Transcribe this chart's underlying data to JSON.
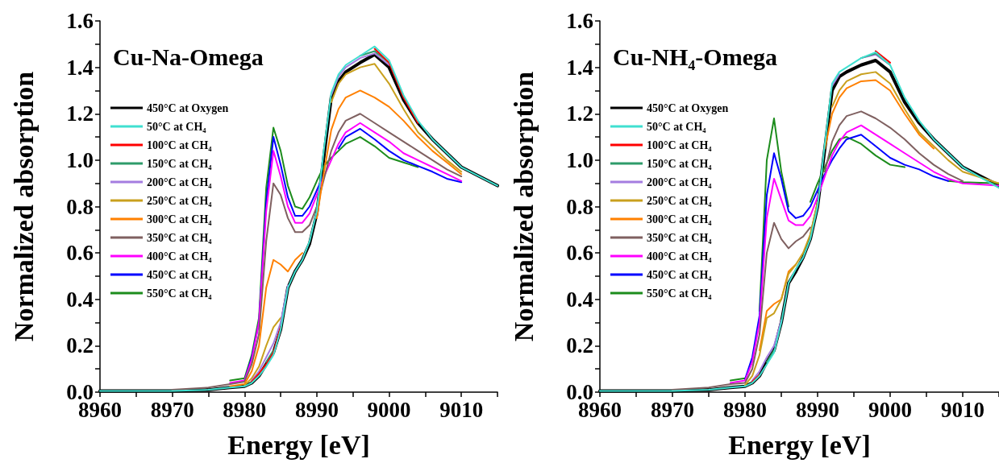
{
  "chart_data": [
    {
      "type": "line",
      "title": "Cu-Na-Omega",
      "xlabel": "Energy [eV]",
      "ylabel": "Normalized absorption",
      "legend": "top left",
      "grid": false,
      "marker": "none",
      "line_style": "solid",
      "xlim": [
        8960,
        9015
      ],
      "ylim": [
        0,
        1.6
      ],
      "xticks": [
        8960,
        {
          "value": 8965,
          "label": null
        },
        8970,
        {
          "value": 8975,
          "label": null
        },
        8980,
        {
          "value": 8985,
          "label": null
        },
        8990,
        {
          "value": 8995,
          "label": null
        },
        9000,
        {
          "value": 9005,
          "label": null
        },
        9010,
        {
          "value": 9015,
          "label": null
        }
      ],
      "yticks": [
        {
          "value": 0,
          "label": "0.0"
        },
        {
          "value": 0.1,
          "label": null
        },
        0.2,
        {
          "value": 0.3,
          "label": null
        },
        0.4,
        {
          "value": 0.5,
          "label": null
        },
        0.6,
        {
          "value": 0.7,
          "label": null
        },
        0.8,
        {
          "value": 0.9,
          "label": null
        },
        {
          "value": 1,
          "label": "1.0"
        },
        {
          "value": 1.1,
          "label": null
        },
        1.2,
        {
          "value": 1.3,
          "label": null
        },
        1.4,
        {
          "value": 1.5,
          "label": null
        },
        1.6
      ],
      "x": [
        8960,
        8970,
        8975,
        8978,
        8980,
        8981,
        8982,
        8983,
        8984,
        8985,
        8986,
        8987,
        8988,
        8989,
        8990,
        8991,
        8992,
        8993,
        8994,
        8996,
        8998,
        9000,
        9002,
        9004,
        9006,
        9008,
        9010,
        9015
      ],
      "series": [
        {
          "name": "450°C at Oxygen",
          "color": "#000000",
          "values": [
            0.005,
            0.005,
            0.01,
            0.02,
            0.025,
            0.04,
            0.07,
            0.12,
            0.17,
            0.27,
            0.45,
            0.52,
            0.57,
            0.64,
            0.77,
            1.02,
            1.27,
            1.34,
            1.38,
            1.42,
            1.455,
            1.4,
            1.26,
            1.16,
            1.09,
            1.03,
            0.97,
            0.89
          ]
        },
        {
          "name": "50°C at CH₄",
          "color": "#40e0d0",
          "values": [
            0.005,
            0.005,
            0.01,
            0.02,
            0.025,
            0.04,
            0.07,
            0.11,
            0.16,
            0.27,
            0.45,
            0.52,
            0.57,
            0.65,
            0.78,
            1.05,
            1.29,
            1.37,
            1.41,
            1.45,
            1.49,
            1.43,
            1.28,
            1.17,
            1.09,
            1.03,
            0.97,
            0.89
          ]
        },
        {
          "name": "100°C at CH₄",
          "color": "#ff0000",
          "values": [
            null,
            null,
            null,
            null,
            null,
            0.045,
            0.08,
            0.12,
            0.17,
            0.28,
            null,
            null,
            null,
            null,
            null,
            null,
            null,
            null,
            null,
            null,
            1.48,
            1.42,
            1.27,
            1.16,
            null,
            null,
            null,
            null
          ]
        },
        {
          "name": "150°C at CH₄",
          "color": "#2e9b6a",
          "values": [
            null,
            null,
            null,
            null,
            null,
            null,
            null,
            0.13,
            0.18,
            null,
            null,
            null,
            null,
            null,
            null,
            null,
            null,
            null,
            null,
            1.45,
            1.47,
            1.42,
            null,
            null,
            null,
            null,
            null,
            null
          ]
        },
        {
          "name": "200°C at CH₄",
          "color": "#a47de0",
          "values": [
            null,
            null,
            null,
            null,
            null,
            0.05,
            0.09,
            0.15,
            0.21,
            0.3,
            0.46,
            null,
            null,
            null,
            null,
            null,
            1.28,
            1.36,
            1.4,
            1.44,
            1.46,
            1.41,
            null,
            null,
            null,
            null,
            null,
            null
          ]
        },
        {
          "name": "250°C at CH₄",
          "color": "#c9a01e",
          "values": [
            null,
            null,
            null,
            null,
            0.03,
            0.06,
            0.11,
            0.2,
            0.28,
            0.32,
            null,
            null,
            null,
            null,
            null,
            null,
            1.25,
            1.33,
            1.37,
            1.4,
            1.415,
            1.33,
            1.22,
            1.12,
            1.06,
            1.0,
            0.95,
            null
          ]
        },
        {
          "name": "300°C at CH₄",
          "color": "#ff8000",
          "values": [
            null,
            null,
            null,
            0.025,
            0.035,
            0.09,
            0.2,
            0.45,
            0.57,
            0.55,
            0.52,
            0.57,
            0.6,
            null,
            0.75,
            0.95,
            1.13,
            1.22,
            1.27,
            1.3,
            1.27,
            1.23,
            1.17,
            1.1,
            1.04,
            0.99,
            0.94,
            null
          ]
        },
        {
          "name": "350°C at CH₄",
          "color": "#7f6060",
          "values": [
            null,
            0.01,
            0.02,
            0.035,
            0.045,
            0.12,
            0.25,
            0.65,
            0.9,
            0.85,
            0.75,
            0.69,
            0.69,
            0.72,
            0.8,
            0.92,
            1.04,
            1.12,
            1.17,
            1.2,
            1.16,
            1.12,
            1.08,
            1.04,
            1.0,
            0.96,
            0.93,
            null
          ]
        },
        {
          "name": "400°C at CH₄",
          "color": "#ff00ff",
          "values": [
            null,
            null,
            null,
            0.04,
            0.05,
            0.14,
            0.3,
            0.78,
            1.04,
            0.93,
            0.8,
            0.73,
            0.73,
            0.77,
            0.85,
            0.93,
            1.0,
            1.07,
            1.12,
            1.16,
            1.12,
            1.08,
            1.03,
            1.0,
            0.97,
            0.94,
            0.91,
            null
          ]
        },
        {
          "name": "450°C at CH₄",
          "color": "#0000ff",
          "values": [
            null,
            null,
            null,
            null,
            0.05,
            0.15,
            0.3,
            0.82,
            1.1,
            0.98,
            0.84,
            0.76,
            0.76,
            0.8,
            0.87,
            0.94,
            null,
            1.05,
            1.1,
            1.135,
            1.09,
            1.04,
            1.0,
            0.975,
            0.95,
            0.92,
            0.905,
            null
          ]
        },
        {
          "name": "550°C at CH₄",
          "color": "#1c8c1c",
          "values": [
            null,
            null,
            null,
            0.05,
            0.06,
            0.16,
            0.32,
            0.88,
            1.14,
            1.04,
            0.89,
            0.8,
            0.79,
            0.84,
            0.91,
            0.975,
            1.01,
            1.04,
            1.07,
            1.1,
            1.06,
            1.01,
            0.99,
            0.97,
            null,
            null,
            null,
            null
          ]
        }
      ]
    },
    {
      "type": "line",
      "title": "Cu-NH₄-Omega",
      "xlabel": "Energy [eV]",
      "ylabel": "Normalized absorption",
      "legend": "top left",
      "grid": false,
      "marker": "none",
      "line_style": "solid",
      "xlim": [
        8960,
        9015
      ],
      "ylim": [
        0,
        1.6
      ],
      "xticks": [
        8960,
        {
          "value": 8965,
          "label": null
        },
        8970,
        {
          "value": 8975,
          "label": null
        },
        8980,
        {
          "value": 8985,
          "label": null
        },
        8990,
        {
          "value": 8995,
          "label": null
        },
        9000,
        {
          "value": 9005,
          "label": null
        },
        9010,
        {
          "value": 9015,
          "label": null
        }
      ],
      "yticks": [
        {
          "value": 0,
          "label": "0.0"
        },
        {
          "value": 0.1,
          "label": null
        },
        0.2,
        {
          "value": 0.3,
          "label": null
        },
        0.4,
        {
          "value": 0.5,
          "label": null
        },
        0.6,
        {
          "value": 0.7,
          "label": null
        },
        0.8,
        {
          "value": 0.9,
          "label": null
        },
        {
          "value": 1,
          "label": "1.0"
        },
        {
          "value": 1.1,
          "label": null
        },
        1.2,
        {
          "value": 1.3,
          "label": null
        },
        1.4,
        {
          "value": 1.5,
          "label": null
        },
        1.6
      ],
      "x": [
        8960,
        8970,
        8975,
        8978,
        8980,
        8981,
        8982,
        8983,
        8984,
        8985,
        8986,
        8987,
        8988,
        8989,
        8990,
        8991,
        8992,
        8993,
        8994,
        8996,
        8998,
        9000,
        9002,
        9004,
        9006,
        9008,
        9010,
        9015
      ],
      "series": [
        {
          "name": "450°C at Oxygen",
          "color": "#000000",
          "values": [
            0.005,
            0.005,
            0.01,
            0.02,
            0.025,
            0.04,
            0.07,
            0.13,
            0.18,
            0.3,
            0.47,
            0.52,
            0.58,
            0.66,
            0.8,
            1.05,
            1.3,
            1.36,
            1.38,
            1.41,
            1.43,
            1.38,
            1.25,
            1.16,
            1.09,
            1.03,
            0.97,
            0.89
          ]
        },
        {
          "name": "50°C at CH₄",
          "color": "#40e0d0",
          "values": [
            0.005,
            0.005,
            0.01,
            0.02,
            0.025,
            0.04,
            0.07,
            0.12,
            0.17,
            0.3,
            0.47,
            0.53,
            0.58,
            0.66,
            0.8,
            1.07,
            1.33,
            1.38,
            1.4,
            1.44,
            1.465,
            1.41,
            1.27,
            1.17,
            1.09,
            1.03,
            0.97,
            0.88
          ]
        },
        {
          "name": "100°C at CH₄",
          "color": "#ff0000",
          "values": [
            null,
            null,
            null,
            null,
            null,
            0.045,
            0.075,
            null,
            null,
            null,
            null,
            null,
            null,
            null,
            null,
            null,
            null,
            null,
            null,
            null,
            1.47,
            1.42,
            null,
            null,
            null,
            null,
            null,
            null
          ]
        },
        {
          "name": "150°C at CH₄",
          "color": "#2e9b6a",
          "values": [
            null,
            null,
            null,
            null,
            null,
            null,
            null,
            0.13,
            0.18,
            null,
            null,
            null,
            null,
            null,
            null,
            null,
            null,
            null,
            null,
            1.44,
            1.46,
            1.41,
            null,
            null,
            null,
            null,
            null,
            null
          ]
        },
        {
          "name": "200°C at CH₄",
          "color": "#a47de0",
          "values": [
            null,
            null,
            null,
            null,
            null,
            0.05,
            0.09,
            0.15,
            0.2,
            0.31,
            null,
            null,
            null,
            null,
            null,
            null,
            1.32,
            1.37,
            null,
            1.44,
            1.455,
            1.41,
            null,
            null,
            null,
            null,
            null,
            null
          ]
        },
        {
          "name": "250°C at CH₄",
          "color": "#c9a01e",
          "values": [
            null,
            null,
            null,
            null,
            0.03,
            0.07,
            0.16,
            0.32,
            0.34,
            0.4,
            0.51,
            0.55,
            0.6,
            0.68,
            0.82,
            null,
            1.23,
            1.3,
            1.34,
            1.37,
            1.38,
            1.33,
            1.22,
            1.12,
            1.06,
            1.0,
            0.95,
            0.9
          ]
        },
        {
          "name": "300°C at CH₄",
          "color": "#ff8000",
          "values": [
            null,
            null,
            null,
            null,
            null,
            null,
            0.18,
            0.35,
            0.38,
            0.4,
            0.52,
            0.55,
            null,
            null,
            null,
            1.05,
            1.2,
            1.27,
            1.31,
            1.34,
            1.345,
            1.3,
            1.2,
            1.11,
            1.05,
            null,
            null,
            null
          ]
        },
        {
          "name": "350°C at CH₄",
          "color": "#7f6060",
          "values": [
            null,
            0.01,
            0.02,
            0.035,
            0.04,
            0.1,
            0.25,
            0.6,
            0.73,
            0.66,
            0.62,
            0.65,
            0.67,
            0.71,
            null,
            0.95,
            1.08,
            1.15,
            1.19,
            1.21,
            1.18,
            1.14,
            1.09,
            1.03,
            0.98,
            0.94,
            0.91,
            null
          ]
        },
        {
          "name": "400°C at CH₄",
          "color": "#ff00ff",
          "values": [
            null,
            null,
            null,
            0.04,
            0.05,
            0.13,
            0.3,
            0.75,
            0.92,
            0.83,
            0.74,
            0.72,
            0.72,
            0.76,
            0.84,
            0.93,
            1.02,
            1.08,
            1.12,
            1.15,
            1.11,
            1.07,
            1.03,
            0.99,
            0.95,
            0.92,
            0.9,
            0.89
          ]
        },
        {
          "name": "450°C at CH₄",
          "color": "#0000ff",
          "values": [
            null,
            null,
            null,
            null,
            0.055,
            0.15,
            0.33,
            0.85,
            1.03,
            0.92,
            0.78,
            0.75,
            0.76,
            0.8,
            0.87,
            0.94,
            1.0,
            1.05,
            1.09,
            1.11,
            1.06,
            1.01,
            0.98,
            0.96,
            0.93,
            0.91,
            null,
            null
          ]
        },
        {
          "name": "550°C at CH₄",
          "color": "#1c8c1c",
          "values": [
            null,
            null,
            null,
            0.05,
            0.06,
            null,
            0.35,
            1.0,
            1.18,
            0.95,
            0.8,
            null,
            null,
            0.82,
            0.9,
            0.97,
            1.04,
            1.09,
            1.1,
            1.07,
            1.02,
            0.98,
            0.97,
            null,
            null,
            0.91,
            0.905,
            0.9
          ]
        }
      ]
    }
  ]
}
